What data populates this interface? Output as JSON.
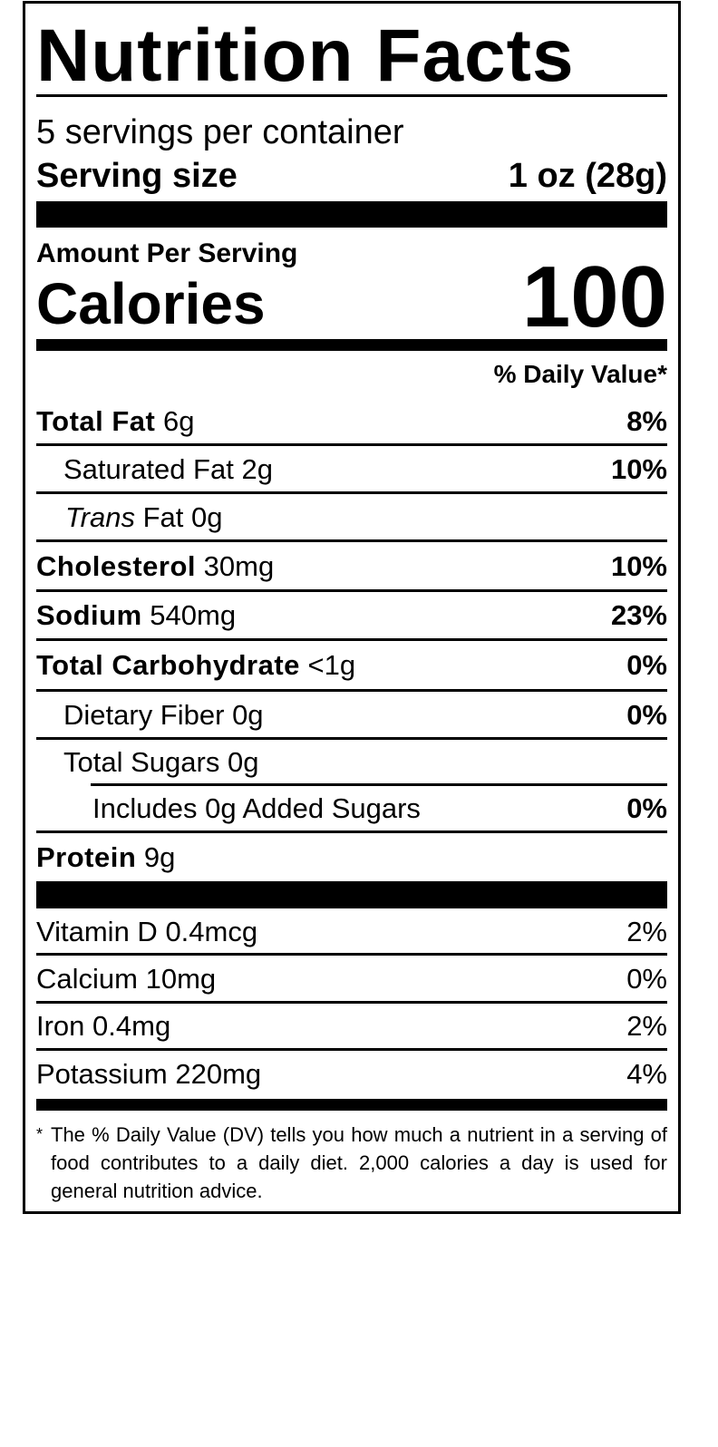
{
  "title": "Nutrition Facts",
  "servings_per_container": "5 servings per container",
  "serving_size_label": "Serving size",
  "serving_size_value": "1 oz (28g)",
  "amount_per_serving": "Amount Per Serving",
  "calories_label": "Calories",
  "calories_value": "100",
  "dv_header": "% Daily Value*",
  "nutrients": [
    {
      "name": "Total Fat",
      "amount": "6g",
      "dv": "8%"
    },
    {
      "name": "Saturated Fat",
      "amount": "2g",
      "dv": "10%"
    },
    {
      "name": "Trans",
      "name_suffix": "Fat",
      "amount": "0g",
      "dv": ""
    },
    {
      "name": "Cholesterol",
      "amount": "30mg",
      "dv": "10%"
    },
    {
      "name": "Sodium",
      "amount": "540mg",
      "dv": "23%"
    },
    {
      "name": "Total Carbohydrate",
      "amount": "<1g",
      "dv": "0%"
    },
    {
      "name": "Dietary Fiber",
      "amount": "0g",
      "dv": "0%"
    },
    {
      "name": "Total Sugars",
      "amount": "0g",
      "dv": ""
    },
    {
      "name": "Includes 0g Added Sugars",
      "amount": "",
      "dv": "0%"
    },
    {
      "name": "Protein",
      "amount": "9g",
      "dv": ""
    }
  ],
  "vitamins": [
    {
      "name": "Vitamin D",
      "amount": "0.4mcg",
      "dv": "2%"
    },
    {
      "name": "Calcium",
      "amount": "10mg",
      "dv": "0%"
    },
    {
      "name": "Iron",
      "amount": "0.4mg",
      "dv": "2%"
    },
    {
      "name": "Potassium",
      "amount": "220mg",
      "dv": "4%"
    }
  ],
  "footnote_marker": "*",
  "footnote": "The % Daily Value (DV) tells you how much a nutrient in a serving of food contributes to a daily diet. 2,000 calories a day is used for general nutrition advice."
}
